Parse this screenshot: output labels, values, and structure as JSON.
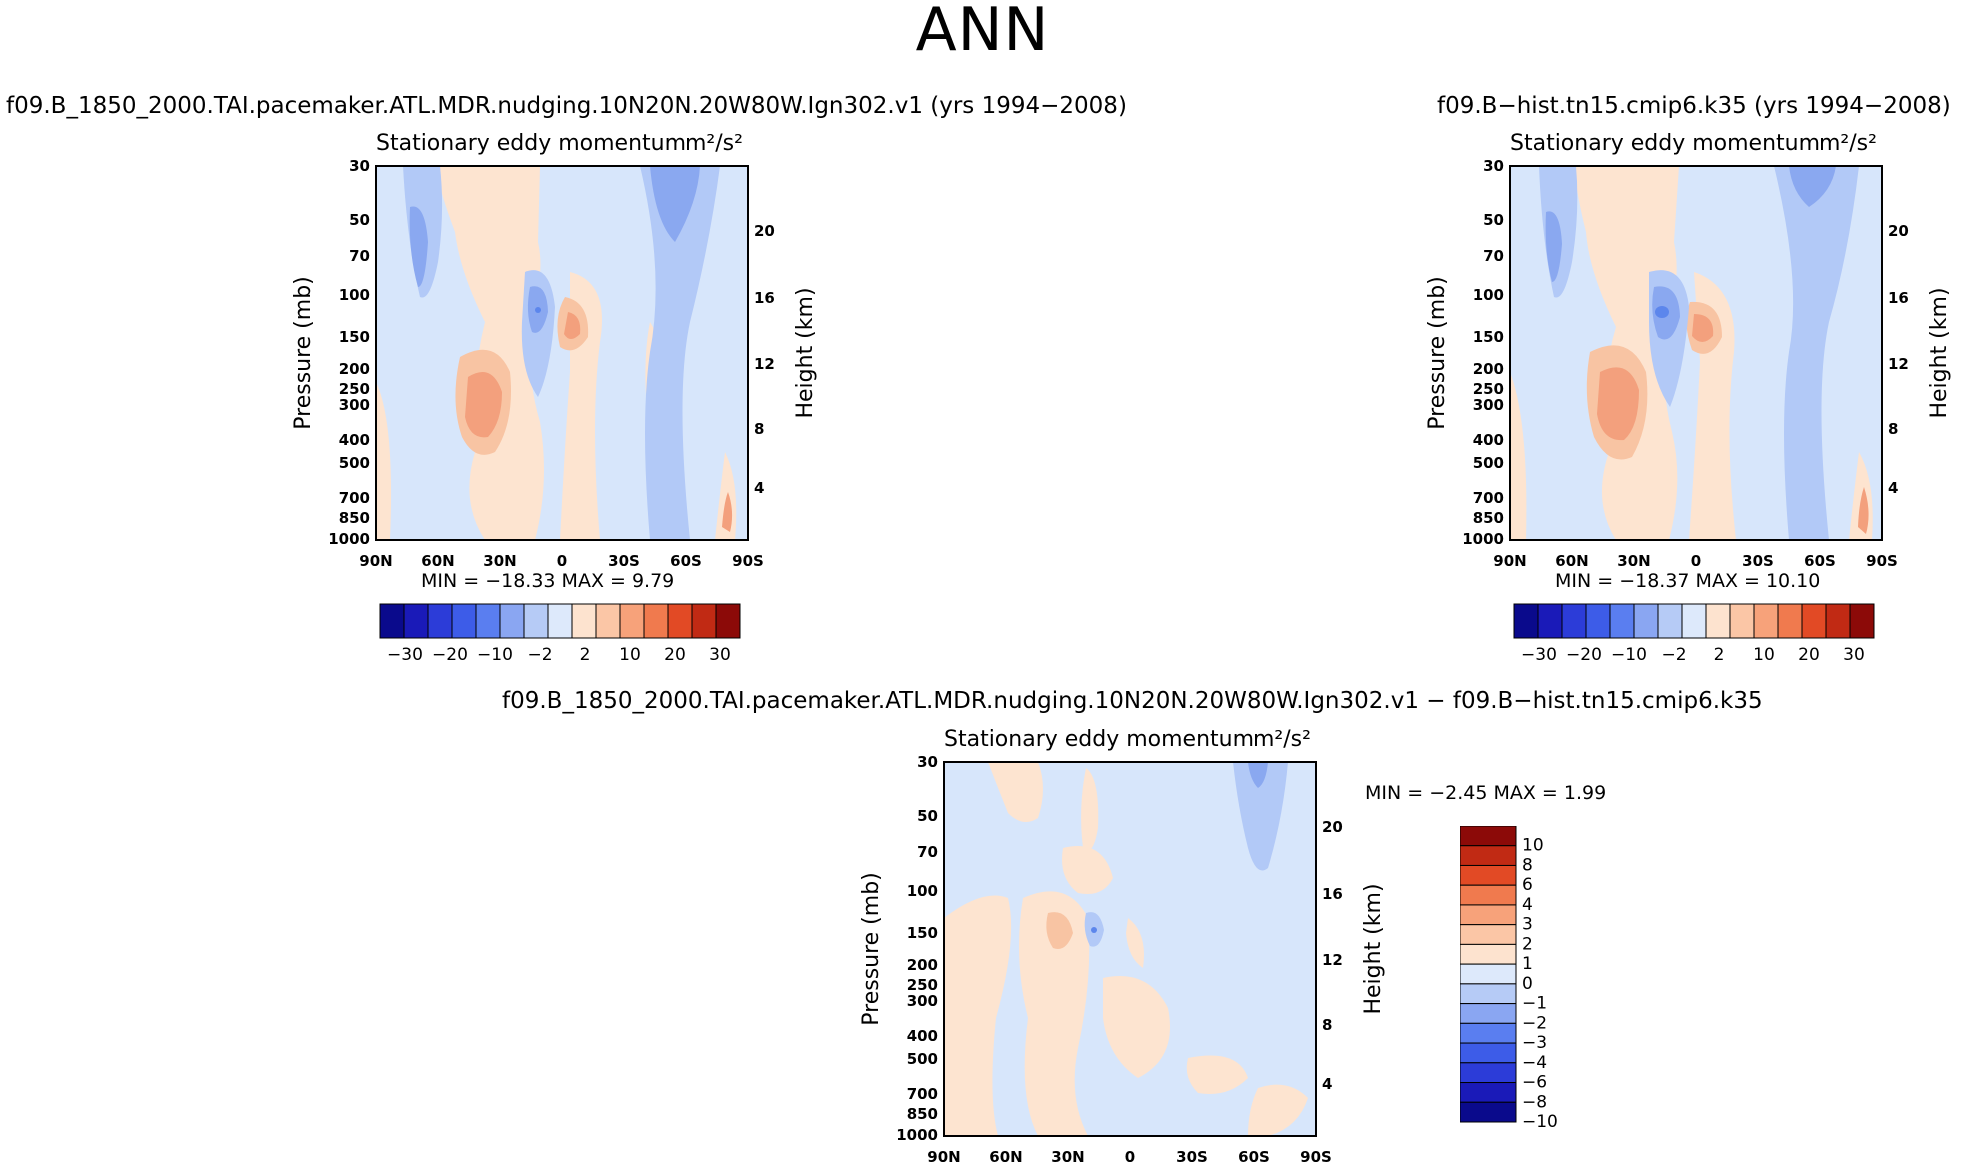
{
  "page_title": "ANN",
  "panels": [
    {
      "case_title": "f09.B_1850_2000.TAI.pacemaker.ATL.MDR.nudging.10N20N.20W80W.Ign302.v1 (yrs 1994−2008)",
      "variable_label": "Stationary eddy momentum",
      "units": "m²/s²",
      "minmax": "MIN = −18.33   MAX =   9.79"
    },
    {
      "case_title": "f09.B−hist.tn15.cmip6.k35 (yrs 1994−2008)",
      "variable_label": "Stationary eddy momentum",
      "units": "m²/s²",
      "minmax": "MIN = −18.37   MAX =  10.10"
    },
    {
      "case_title": "f09.B_1850_2000.TAI.pacemaker.ATL.MDR.nudging.10N20N.20W80W.Ign302.v1 − f09.B−hist.tn15.cmip6.k35",
      "variable_label": "Stationary eddy momentum",
      "units": "m²/s²",
      "minmax": "MIN =   −2.45   MAX =    1.99"
    }
  ],
  "chart_data": [
    {
      "type": "heatmap",
      "title": "Stationary eddy momentum m²/s²",
      "xlabel": "",
      "ylabel": "Pressure (mb)",
      "y2label": "Height (km)",
      "x_ticks": [
        "90N",
        "60N",
        "30N",
        "0",
        "30S",
        "60S",
        "90S"
      ],
      "y_ticks": [
        "30",
        "50",
        "70",
        "100",
        "150",
        "200",
        "250",
        "300",
        "400",
        "500",
        "700",
        "850",
        "1000"
      ],
      "y2_ticks": [
        "20",
        "16",
        "12",
        "8",
        "4"
      ],
      "min": -18.33,
      "max": 9.79,
      "colorbar_levels": [
        "−30",
        "−20",
        "−10",
        "−2",
        "2",
        "10",
        "20",
        "30"
      ]
    },
    {
      "type": "heatmap",
      "title": "Stationary eddy momentum m²/s²",
      "xlabel": "",
      "ylabel": "Pressure (mb)",
      "y2label": "Height (km)",
      "x_ticks": [
        "90N",
        "60N",
        "30N",
        "0",
        "30S",
        "60S",
        "90S"
      ],
      "y_ticks": [
        "30",
        "50",
        "70",
        "100",
        "150",
        "200",
        "250",
        "300",
        "400",
        "500",
        "700",
        "850",
        "1000"
      ],
      "y2_ticks": [
        "20",
        "16",
        "12",
        "8",
        "4"
      ],
      "min": -18.37,
      "max": 10.1,
      "colorbar_levels": [
        "−30",
        "−20",
        "−10",
        "−2",
        "2",
        "10",
        "20",
        "30"
      ]
    },
    {
      "type": "heatmap",
      "title": "Stationary eddy momentum m²/s²",
      "xlabel": "",
      "ylabel": "Pressure (mb)",
      "y2label": "Height (km)",
      "x_ticks": [
        "90N",
        "60N",
        "30N",
        "0",
        "30S",
        "60S",
        "90S"
      ],
      "y_ticks": [
        "30",
        "50",
        "70",
        "100",
        "150",
        "200",
        "250",
        "300",
        "400",
        "500",
        "700",
        "850",
        "1000"
      ],
      "y2_ticks": [
        "20",
        "16",
        "12",
        "8",
        "4"
      ],
      "min": -2.45,
      "max": 1.99,
      "colorbar_levels": [
        "10",
        "8",
        "6",
        "4",
        "3",
        "2",
        "1",
        "0",
        "−1",
        "−2",
        "−3",
        "−4",
        "−6",
        "−8",
        "−10"
      ]
    }
  ],
  "colors": {
    "scale_13": [
      "#0a0a8c",
      "#1a1ab8",
      "#2c3cd8",
      "#3d5ce8",
      "#5a7ef0",
      "#8aa6f2",
      "#b6cbf6",
      "#dde9fb",
      "#fde3cf",
      "#fbc6a6",
      "#f7a27a",
      "#f07a4e",
      "#e24a25",
      "#c12a14",
      "#8c0a08"
    ],
    "neg_light": "#d7e6fb",
    "neg_mid": "#b2c9f7",
    "neg_dark": "#8aa8f0",
    "neg_deep": "#5c86ec",
    "pos_light": "#fde4d0",
    "pos_mid": "#f8c4a3",
    "pos_dark": "#f3a07d"
  }
}
